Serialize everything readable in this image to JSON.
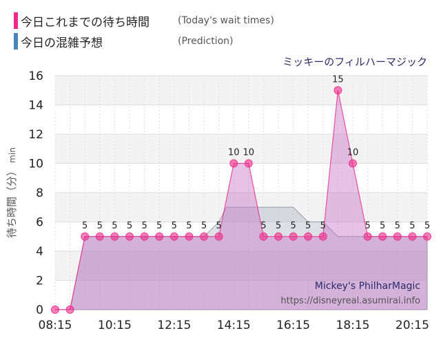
{
  "legend": {
    "items": [
      {
        "label": "今日これまでの待ち時間",
        "sub": "(Today's wait times)",
        "color": "#ee2a8a"
      },
      {
        "label": "今日の混雑予想",
        "sub": "(Prediction)",
        "color": "#4a86b8"
      }
    ]
  },
  "attraction_title_jp": "ミッキーのフィルハーマジック",
  "watermark": {
    "title_en": "Mickey's PhilharMagic",
    "url": "https://disneyreal.asumirai.info"
  },
  "chart_data": {
    "type": "area",
    "ylabel": "待ち時間（分）",
    "yunit": "min",
    "ylim": [
      0,
      16
    ],
    "yticks": [
      "0",
      "2",
      "4",
      "6",
      "8",
      "10",
      "12",
      "14",
      "16"
    ],
    "xlim": [
      "08:15",
      "20:45"
    ],
    "xticks": [
      "08:15",
      "10:15",
      "12:15",
      "14:15",
      "16:15",
      "18:15",
      "20:15"
    ],
    "grid": true,
    "series": [
      {
        "name": "今日これまでの待ち時間",
        "color": "#ee2a8a",
        "x": [
          "08:15",
          "08:45",
          "09:15",
          "09:45",
          "10:15",
          "10:45",
          "11:15",
          "11:45",
          "12:15",
          "12:45",
          "13:15",
          "13:45",
          "14:15",
          "14:45",
          "15:15",
          "15:45",
          "16:15",
          "16:45",
          "17:15",
          "17:45",
          "18:15",
          "18:45",
          "19:15",
          "19:45",
          "20:15",
          "20:45"
        ],
        "values": [
          0,
          0,
          5,
          5,
          5,
          5,
          5,
          5,
          5,
          5,
          5,
          5,
          10,
          10,
          5,
          5,
          5,
          5,
          5,
          15,
          10,
          5,
          5,
          5,
          5,
          5
        ],
        "labels": [
          "",
          "",
          "5",
          "5",
          "5",
          "5",
          "5",
          "5",
          "5",
          "5",
          "5",
          "5",
          "10",
          "10",
          "5",
          "5",
          "5",
          "5",
          "5",
          "15",
          "10",
          "5",
          "5",
          "5",
          "5",
          "5"
        ]
      },
      {
        "name": "今日の混雑予想",
        "color": "#4a86b8",
        "x": [
          "08:15",
          "08:45",
          "09:15",
          "09:45",
          "10:15",
          "10:45",
          "11:15",
          "11:45",
          "12:15",
          "12:45",
          "13:15",
          "13:45",
          "14:00",
          "14:15",
          "14:45",
          "15:15",
          "15:45",
          "16:15",
          "16:45",
          "17:15",
          "17:45",
          "18:15",
          "18:45",
          "19:15",
          "19:45",
          "20:15",
          "20:45"
        ],
        "values": [
          0,
          0,
          5,
          5,
          5,
          5,
          5,
          5,
          5,
          5,
          5,
          6,
          7,
          7,
          7,
          7,
          7,
          7,
          6,
          6,
          5,
          5,
          5,
          5,
          5,
          5,
          5
        ]
      }
    ]
  }
}
